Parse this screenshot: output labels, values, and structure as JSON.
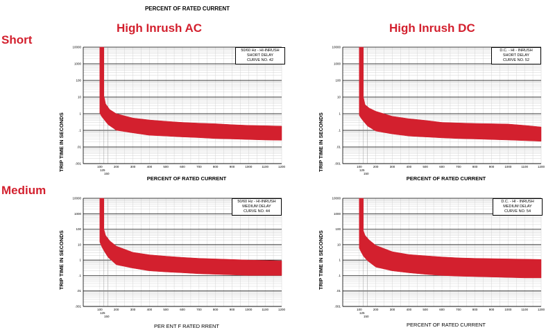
{
  "page": {
    "top_label": "PERCENT OF RATED CURRENT",
    "rows": {
      "short": "Short",
      "medium": "Medium"
    },
    "columns": {
      "ac": "High Inrush AC",
      "dc": "High Inrush DC"
    },
    "band_color": "#d3202e"
  },
  "chart_data": [
    {
      "id": "ac-short",
      "type": "area",
      "legend": [
        "50/60 Hz - HI-INRUSH",
        "SHORT DELAY",
        "CURVE NO. 42"
      ],
      "ylabel": "TRIP TIME IN SECONDS",
      "xlabel": "PERCENT OF RATED CURRENT",
      "y_scale": "log",
      "ylim": [
        0.001,
        10000
      ],
      "xlim": [
        0,
        1200
      ],
      "y_ticks": [
        "10000",
        "1000",
        "100",
        "10",
        "1",
        ".1",
        ".01",
        ".001"
      ],
      "x_ticks": [
        "100",
        "200",
        "300",
        "400",
        "500",
        "600",
        "700",
        "800",
        "900",
        "1000",
        "1100",
        "1200"
      ],
      "x_minor_labels": [
        "125",
        "150"
      ],
      "series": [
        {
          "x": [
            125,
            125,
            135,
            160,
            200,
            300,
            400,
            500,
            600,
            700,
            800,
            900,
            1000,
            1100,
            1200
          ],
          "values": [
            10000,
            12,
            4,
            1.8,
            1.0,
            0.55,
            0.42,
            0.35,
            0.3,
            0.27,
            0.25,
            0.22,
            0.2,
            0.19,
            0.18
          ]
        },
        {
          "x": [
            100,
            110,
            125,
            150,
            200,
            300,
            400,
            500,
            600,
            700,
            800,
            900,
            1000,
            1100,
            1200
          ],
          "values": [
            1.1,
            0.7,
            0.45,
            0.22,
            0.1,
            0.07,
            0.05,
            0.045,
            0.04,
            0.036,
            0.032,
            0.03,
            0.028,
            0.026,
            0.025
          ]
        }
      ]
    },
    {
      "id": "dc-short",
      "type": "area",
      "legend": [
        "D.C. - HI - INRUSH",
        "SHORT DELAY",
        "CURVE NO. 52"
      ],
      "ylabel": "TRIP TIME IN SECONDS",
      "xlabel": "PERCENT OF RATED CURRENT",
      "y_scale": "log",
      "ylim": [
        0.001,
        10000
      ],
      "xlim": [
        0,
        1200
      ],
      "y_ticks": [
        "10000",
        "1000",
        "100",
        "10",
        "1",
        ".1",
        ".01",
        ".001"
      ],
      "x_ticks": [
        "100",
        "200",
        "300",
        "400",
        "500",
        "600",
        "700",
        "800",
        "900",
        "1000",
        "1100",
        "1200"
      ],
      "x_minor_labels": [
        "125",
        "150"
      ],
      "series": [
        {
          "x": [
            125,
            125,
            135,
            160,
            200,
            300,
            400,
            500,
            600,
            700,
            800,
            900,
            1000,
            1100,
            1200
          ],
          "values": [
            10000,
            10,
            3.5,
            2.2,
            1.4,
            0.7,
            0.5,
            0.4,
            0.3,
            0.28,
            0.26,
            0.25,
            0.24,
            0.2,
            0.16
          ]
        },
        {
          "x": [
            100,
            110,
            125,
            150,
            200,
            300,
            400,
            500,
            600,
            700,
            800,
            900,
            1000,
            1100,
            1200
          ],
          "values": [
            0.8,
            0.55,
            0.35,
            0.18,
            0.09,
            0.06,
            0.045,
            0.04,
            0.035,
            0.032,
            0.03,
            0.028,
            0.026,
            0.024,
            0.022
          ]
        }
      ]
    },
    {
      "id": "ac-medium",
      "type": "area",
      "legend": [
        "50/60 Hz - HI-INRUSH",
        "MEDIUM DELAY",
        "CURVE NO. 44"
      ],
      "ylabel": "TRIP TIME IN SECONDS",
      "xlabel": "PER ENT F RATED RRENT",
      "y_scale": "log",
      "ylim": [
        0.001,
        10000
      ],
      "xlim": [
        0,
        1200
      ],
      "y_ticks": [
        "10000",
        "1000",
        "100",
        "10",
        "1",
        ".1",
        ".01",
        ".001"
      ],
      "x_ticks": [
        "100",
        "200",
        "300",
        "400",
        "500",
        "600",
        "700",
        "800",
        "900",
        "1000",
        "1100",
        "1200"
      ],
      "x_minor_labels": [
        "125",
        "150"
      ],
      "series": [
        {
          "x": [
            125,
            125,
            135,
            160,
            200,
            300,
            400,
            500,
            600,
            700,
            800,
            900,
            1000,
            1100,
            1200
          ],
          "values": [
            10000,
            100,
            40,
            18,
            8,
            3.2,
            2.2,
            1.8,
            1.5,
            1.3,
            1.2,
            1.1,
            1.0,
            0.95,
            0.9
          ]
        },
        {
          "x": [
            100,
            110,
            125,
            150,
            200,
            300,
            400,
            500,
            600,
            700,
            800,
            900,
            1000,
            1100,
            1200
          ],
          "values": [
            15,
            8,
            4,
            1.5,
            0.5,
            0.3,
            0.2,
            0.17,
            0.15,
            0.13,
            0.12,
            0.11,
            0.1,
            0.1,
            0.1
          ]
        }
      ]
    },
    {
      "id": "dc-medium",
      "type": "area",
      "legend": [
        "D.C. - HI - INRUSH",
        "MEDIUM DELAY",
        "CURVE NO. 54"
      ],
      "ylabel": "TRIP TIME IN SECONDS",
      "xlabel": "PERCENT OF RATED CURRENT",
      "y_scale": "log",
      "ylim": [
        0.001,
        10000
      ],
      "xlim": [
        0,
        1200
      ],
      "y_ticks": [
        "10000",
        "1000",
        "100",
        "10",
        "1",
        ".1",
        ".01",
        ".001"
      ],
      "x_ticks": [
        "100",
        "200",
        "300",
        "400",
        "500",
        "600",
        "700",
        "800",
        "900",
        "1000",
        "1100",
        "1200"
      ],
      "x_minor_labels": [
        "125",
        "150"
      ],
      "series": [
        {
          "x": [
            125,
            125,
            135,
            160,
            200,
            300,
            400,
            500,
            600,
            700,
            800,
            900,
            1000,
            1100,
            1200
          ],
          "values": [
            10000,
            80,
            40,
            20,
            9,
            3.5,
            2.3,
            1.9,
            1.6,
            1.4,
            1.3,
            1.25,
            1.2,
            1.15,
            1.1
          ]
        },
        {
          "x": [
            100,
            110,
            125,
            150,
            200,
            300,
            400,
            500,
            600,
            700,
            800,
            900,
            1000,
            1100,
            1200
          ],
          "values": [
            6,
            3.5,
            1.8,
            0.9,
            0.35,
            0.2,
            0.15,
            0.12,
            0.1,
            0.09,
            0.085,
            0.08,
            0.075,
            0.07,
            0.07
          ]
        }
      ]
    }
  ]
}
